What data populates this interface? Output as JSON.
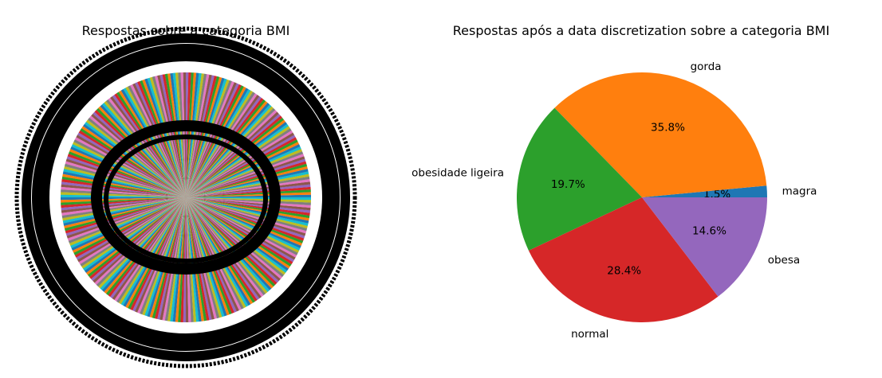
{
  "chart_data": [
    {
      "type": "pie",
      "title": "Respostas sobre a categoria BMI",
      "note_unreadable": true,
      "colors": [
        "#1f77b4",
        "#ff7f0e",
        "#2ca02c",
        "#d62728",
        "#9467bd",
        "#8c564b",
        "#e377c2",
        "#7f7f7f",
        "#bcbd22",
        "#17becf"
      ]
    },
    {
      "type": "pie",
      "title": "Respostas após a data discretization sobre a categoria BMI",
      "start_angle_deg": 0,
      "direction": "counterclockwise",
      "slices": [
        {
          "label": "magra",
          "value": 1.5,
          "pct_label": "1.5%",
          "color": "#1f77b4"
        },
        {
          "label": "gorda",
          "value": 35.8,
          "pct_label": "35.8%",
          "color": "#ff7f0e"
        },
        {
          "label": "obesidade ligeira",
          "value": 19.7,
          "pct_label": "19.7%",
          "color": "#2ca02c"
        },
        {
          "label": "normal",
          "value": 28.4,
          "pct_label": "28.4%",
          "color": "#d62728"
        },
        {
          "label": "obesa",
          "value": 14.6,
          "pct_label": "14.6%",
          "color": "#9467bd"
        }
      ]
    }
  ]
}
